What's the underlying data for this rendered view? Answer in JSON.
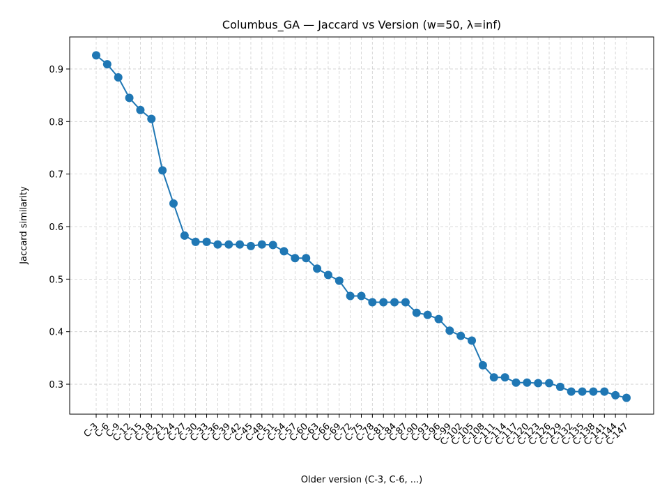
{
  "chart_data": {
    "type": "line",
    "title": "Columbus_GA — Jaccard vs Version (w=50, λ=inf)",
    "xlabel": "Older version (C-3, C-6, ...)",
    "ylabel": "Jaccard similarity",
    "ylim": [
      0.243,
      0.961
    ],
    "yticks": [
      0.3,
      0.4,
      0.5,
      0.6,
      0.7,
      0.8,
      0.9
    ],
    "grid": true,
    "color": "#1f77b4",
    "categories": [
      "C-3",
      "C-6",
      "C-9",
      "C-12",
      "C-15",
      "C-18",
      "C-21",
      "C-24",
      "C-27",
      "C-30",
      "C-33",
      "C-36",
      "C-39",
      "C-42",
      "C-45",
      "C-48",
      "C-51",
      "C-54",
      "C-57",
      "C-60",
      "C-63",
      "C-66",
      "C-69",
      "C-72",
      "C-75",
      "C-78",
      "C-81",
      "C-84",
      "C-87",
      "C-90",
      "C-93",
      "C-96",
      "C-99",
      "C-102",
      "C-105",
      "C-108",
      "C-111",
      "C-114",
      "C-117",
      "C-120",
      "C-123",
      "C-126",
      "C-129",
      "C-132",
      "C-135",
      "C-138",
      "C-141",
      "C-144",
      "C-147"
    ],
    "values": [
      0.926,
      0.909,
      0.884,
      0.845,
      0.822,
      0.805,
      0.707,
      0.644,
      0.583,
      0.571,
      0.571,
      0.566,
      0.566,
      0.566,
      0.563,
      0.566,
      0.565,
      0.553,
      0.54,
      0.54,
      0.52,
      0.508,
      0.497,
      0.468,
      0.468,
      0.456,
      0.456,
      0.456,
      0.456,
      0.436,
      0.432,
      0.424,
      0.402,
      0.392,
      0.383,
      0.336,
      0.313,
      0.313,
      0.303,
      0.303,
      0.302,
      0.302,
      0.295,
      0.286,
      0.286,
      0.286,
      0.286,
      0.279,
      0.274
    ]
  }
}
